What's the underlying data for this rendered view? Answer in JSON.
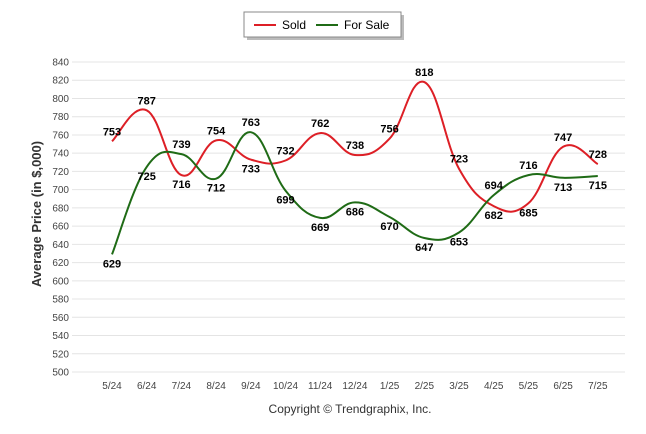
{
  "chart_data": {
    "type": "line",
    "title": "",
    "xlabel": "",
    "ylabel": "Average Price (in $,000)",
    "categories": [
      "5/24",
      "6/24",
      "7/24",
      "8/24",
      "9/24",
      "10/24",
      "11/24",
      "12/24",
      "1/25",
      "2/25",
      "3/25",
      "4/25",
      "5/25",
      "6/25",
      "7/25"
    ],
    "ylim": [
      500,
      840
    ],
    "yticks": [
      500,
      520,
      540,
      560,
      580,
      600,
      620,
      640,
      660,
      680,
      700,
      720,
      740,
      760,
      780,
      800,
      820,
      840
    ],
    "grid": true,
    "legend": "top-center",
    "series": [
      {
        "name": "Sold",
        "color": "#dd1f26",
        "values": [
          753,
          787,
          716,
          754,
          733,
          732,
          762,
          738,
          756,
          818,
          723,
          682,
          685,
          747,
          728
        ]
      },
      {
        "name": "For Sale",
        "color": "#1f6b16",
        "values": [
          629,
          725,
          739,
          712,
          763,
          699,
          669,
          686,
          670,
          647,
          653,
          694,
          716,
          713,
          715
        ]
      }
    ]
  },
  "footer": "Copyright © Trendgraphix, Inc."
}
